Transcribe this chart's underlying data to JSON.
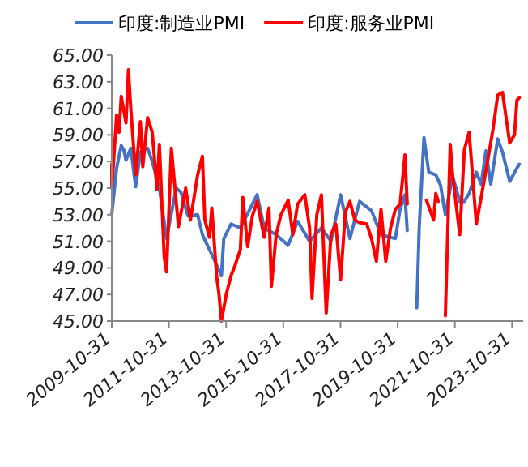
{
  "chart_data": {
    "type": "line",
    "xlim": [
      "2009-10-31",
      "2024-02-29"
    ],
    "xticks": [
      "2009-10-31",
      "2011-10-31",
      "2013-10-31",
      "2015-10-31",
      "2017-10-31",
      "2019-10-31",
      "2021-10-31",
      "2023-10-31"
    ],
    "ylim": [
      45,
      65
    ],
    "yticks": [
      {
        "value": 45,
        "label": "45.00"
      },
      {
        "value": 47,
        "label": "47.00"
      },
      {
        "value": 49,
        "label": "49.00"
      },
      {
        "value": 51,
        "label": "51.00"
      },
      {
        "value": 53,
        "label": "53.00"
      },
      {
        "value": 55,
        "label": "55.00"
      },
      {
        "value": 57,
        "label": "57.00"
      },
      {
        "value": 59,
        "label": "59.00"
      },
      {
        "value": 61,
        "label": "61.00"
      },
      {
        "value": 63,
        "label": "63.00"
      },
      {
        "value": 65,
        "label": "65.00"
      }
    ],
    "legend": "top",
    "series": [
      {
        "name": "印度:制造业PMI",
        "color": "#4472c4",
        "x": [
          "2009-10-31",
          "2010-01",
          "2010-03",
          "2010-04",
          "2010-05",
          "2010-07",
          "2010-09",
          "2010-11",
          "2011-02",
          "2011-04",
          "2011-07",
          "2011-10",
          "2012-02",
          "2012-04",
          "2012-07",
          "2012-11",
          "2013-01",
          "2013-05",
          "2013-09",
          "2013-10",
          "2014-01",
          "2014-05",
          "2014-12",
          "2015-03",
          "2015-08",
          "2016-01",
          "2016-05",
          "2016-10",
          "2017-03",
          "2017-07",
          "2017-11",
          "2018-03",
          "2018-07",
          "2018-12",
          "2019-04",
          "2019-10",
          "2019-12",
          "2020-02",
          "2020-03",
          "2020-04",
          "2020-07",
          "2020-08",
          "2020-10",
          "2020-12",
          "2021-03",
          "2021-05",
          "2021-07",
          "2021-10",
          "2022-01",
          "2022-03",
          "2022-05",
          "2022-08",
          "2022-10",
          "2022-12",
          "2023-02",
          "2023-05",
          "2023-07",
          "2023-10",
          "2024-01",
          "2024-02"
        ],
        "values": [
          53.0,
          56.5,
          58.2,
          57.9,
          57.1,
          58.0,
          55.1,
          57.7,
          58.0,
          57.0,
          55.0,
          51.2,
          55.0,
          54.7,
          52.9,
          53.0,
          51.5,
          50.0,
          48.4,
          51.2,
          52.3,
          52.0,
          54.5,
          52.0,
          51.5,
          50.7,
          52.5,
          51.0,
          52.0,
          51.0,
          54.5,
          51.2,
          54.0,
          53.3,
          51.5,
          51.2,
          53.4,
          54.5,
          51.8,
          null,
          46.0,
          52.0,
          58.8,
          56.2,
          56.0,
          55.2,
          53.0,
          55.9,
          54.0,
          54.0,
          54.6,
          56.2,
          55.3,
          57.8,
          55.3,
          58.7,
          57.7,
          55.5,
          56.5,
          56.8
        ]
      },
      {
        "name": "印度:服务业PMI",
        "color": "#ff0000",
        "x": [
          "2009-10-31",
          "2009-11",
          "2010-01",
          "2010-02",
          "2010-03",
          "2010-05",
          "2010-06",
          "2010-07",
          "2010-09",
          "2010-11",
          "2010-12",
          "2011-02",
          "2011-04",
          "2011-06",
          "2011-07",
          "2011-09",
          "2011-10",
          "2011-12",
          "2012-03",
          "2012-06",
          "2012-08",
          "2012-11",
          "2013-01",
          "2013-02",
          "2013-04",
          "2013-05",
          "2013-07",
          "2013-08",
          "2013-09",
          "2013-11",
          "2014-01",
          "2014-03",
          "2014-05",
          "2014-06",
          "2014-08",
          "2014-10",
          "2014-12",
          "2015-03",
          "2015-05",
          "2015-06",
          "2015-08",
          "2015-10",
          "2016-01",
          "2016-03",
          "2016-05",
          "2016-08",
          "2016-10",
          "2016-11",
          "2017-01",
          "2017-03",
          "2017-05",
          "2017-07",
          "2017-09",
          "2017-11",
          "2018-01",
          "2018-03",
          "2018-05",
          "2018-07",
          "2018-10",
          "2018-12",
          "2019-02",
          "2019-04",
          "2019-06",
          "2019-08",
          "2019-10",
          "2019-12",
          "2020-02",
          "2020-03",
          "2020-04",
          "2020-11",
          "2021-02",
          "2021-03",
          "2021-04",
          "2021-05",
          "2021-07",
          "2021-09",
          "2021-10",
          "2022-01",
          "2022-03",
          "2022-05",
          "2022-08",
          "2022-12",
          "2023-03",
          "2023-05",
          "2023-07",
          "2023-10",
          "2023-12",
          "2024-01",
          "2024-02"
        ],
        "values": [
          56.8,
          55.0,
          60.5,
          59.2,
          61.9,
          59.9,
          63.9,
          61.0,
          56.0,
          60.0,
          56.6,
          60.3,
          59.2,
          54.9,
          58.3,
          49.8,
          48.7,
          58.0,
          52.1,
          55.0,
          52.6,
          56.0,
          57.4,
          52.6,
          51.3,
          53.5,
          48.4,
          47.0,
          45.0,
          47.0,
          48.4,
          49.3,
          50.4,
          54.3,
          50.6,
          52.9,
          54.0,
          51.3,
          53.5,
          47.6,
          51.5,
          53.0,
          54.1,
          51.5,
          53.8,
          54.5,
          52.0,
          46.7,
          53.0,
          54.5,
          45.6,
          51.5,
          52.3,
          48.1,
          53.2,
          54.0,
          52.6,
          52.4,
          52.3,
          51.2,
          49.5,
          53.4,
          49.5,
          52.0,
          53.4,
          53.8,
          57.5,
          53.8,
          null,
          54.1,
          52.6,
          54.6,
          54.0,
          null,
          45.4,
          58.3,
          56.0,
          51.5,
          57.9,
          59.2,
          52.3,
          56.3,
          59.4,
          62.0,
          62.2,
          58.4,
          59.0,
          61.6,
          61.8
        ]
      }
    ]
  }
}
